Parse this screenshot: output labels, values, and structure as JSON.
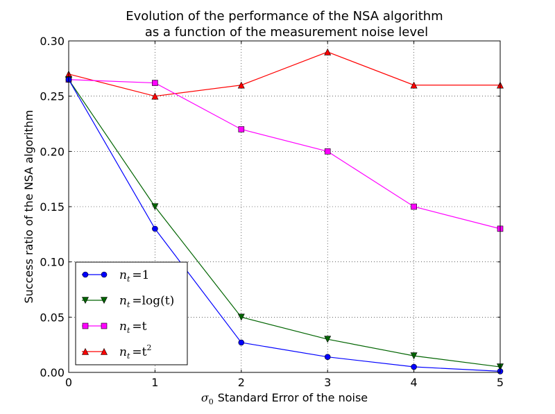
{
  "chart_data": {
    "type": "line",
    "title": [
      "Evolution of the performance of  the NSA algorithm",
      "as a function of the measurement noise level"
    ],
    "xlabel": {
      "symbol": "σ",
      "subscript": "0",
      "text": "Standard Error of the noise"
    },
    "ylabel": "Success ratio of the NSA algorithm",
    "x": [
      0,
      1,
      2,
      3,
      4,
      5
    ],
    "xlim": [
      0,
      5
    ],
    "ylim": [
      0,
      0.3
    ],
    "xticks": [
      "0",
      "1",
      "2",
      "3",
      "4",
      "5"
    ],
    "yticks": [
      "0.00",
      "0.05",
      "0.10",
      "0.15",
      "0.20",
      "0.25",
      "0.30"
    ],
    "ytick_values": [
      0,
      0.05,
      0.1,
      0.15,
      0.2,
      0.25,
      0.3
    ],
    "grid": true,
    "legend_position": "lower-left",
    "series": [
      {
        "name": "n_t = 1",
        "label_main": "n",
        "label_sub": "t",
        "label_rest": "=1",
        "color": "#0000ff",
        "marker": "circle",
        "values": [
          0.265,
          0.13,
          0.027,
          0.014,
          0.005,
          0.001
        ]
      },
      {
        "name": "n_t = log(t)",
        "label_main": "n",
        "label_sub": "t",
        "label_rest": "=log(t)",
        "color": "#006400",
        "marker": "triangle-down",
        "values": [
          0.265,
          0.15,
          0.05,
          0.03,
          0.015,
          0.005
        ]
      },
      {
        "name": "n_t = t",
        "label_main": "n",
        "label_sub": "t",
        "label_rest": "=t",
        "color": "#ff00ff",
        "marker": "square",
        "values": [
          0.265,
          0.262,
          0.22,
          0.2,
          0.15,
          0.13
        ]
      },
      {
        "name": "n_t = t^2",
        "label_main": "n",
        "label_sub": "t",
        "label_rest": "=t",
        "label_sup": "2",
        "color": "#ff0000",
        "marker": "triangle-up",
        "values": [
          0.27,
          0.25,
          0.26,
          0.29,
          0.26,
          0.26
        ]
      }
    ]
  }
}
